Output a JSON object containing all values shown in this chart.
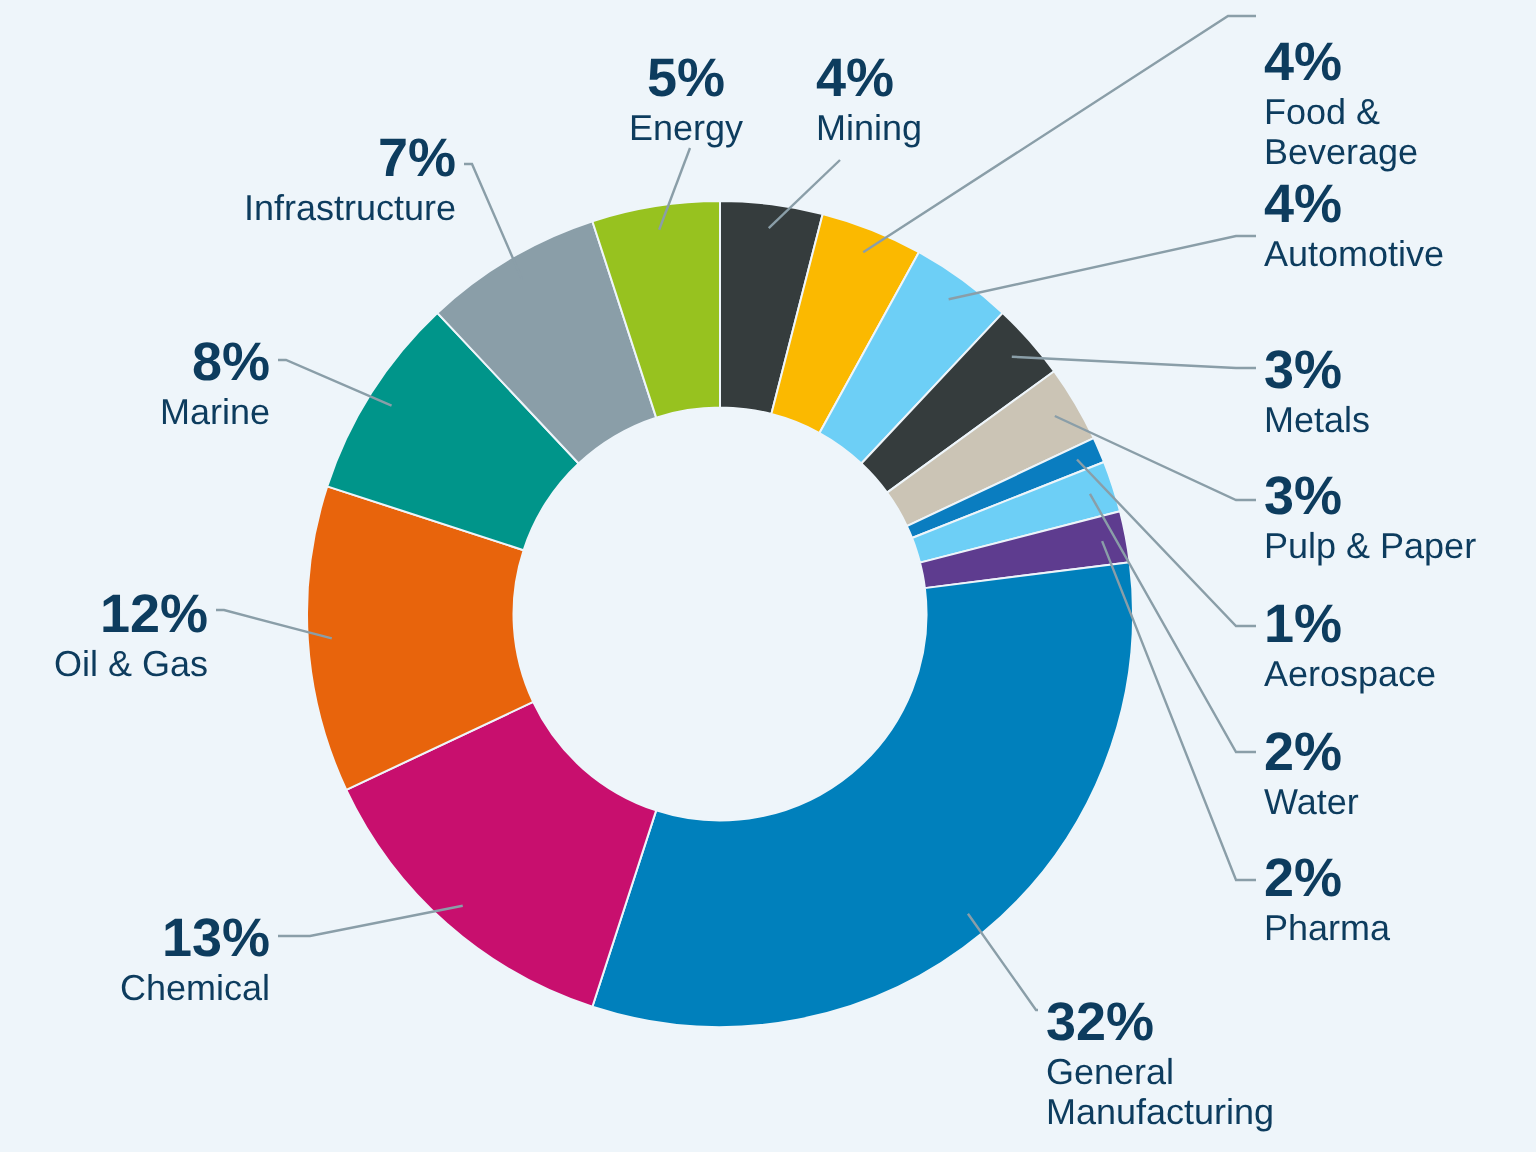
{
  "chart_data": {
    "type": "donut",
    "categories": [
      "Mining",
      "Food & Beverage",
      "Automotive",
      "Metals",
      "Pulp & Paper",
      "Aerospace",
      "Water",
      "Pharma",
      "General Manufacturing",
      "Chemical",
      "Oil & Gas",
      "Marine",
      "Infrastructure",
      "Energy"
    ],
    "values": [
      4,
      4,
      4,
      3,
      3,
      1,
      2,
      2,
      32,
      13,
      12,
      8,
      7,
      5
    ],
    "value_labels": [
      "4%",
      "4%",
      "4%",
      "3%",
      "3%",
      "1%",
      "2%",
      "2%",
      "32%",
      "13%",
      "12%",
      "8%",
      "7%",
      "5%"
    ],
    "colors": [
      "#353c3d",
      "#fbb900",
      "#6dcff6",
      "#353c3d",
      "#cbc4b5",
      "#0a7dc0",
      "#6dcff6",
      "#5e3c8f",
      "#0080bc",
      "#c80f6e",
      "#e8640c",
      "#00958a",
      "#8a9ea8",
      "#97c21f"
    ],
    "legend": false
  }
}
